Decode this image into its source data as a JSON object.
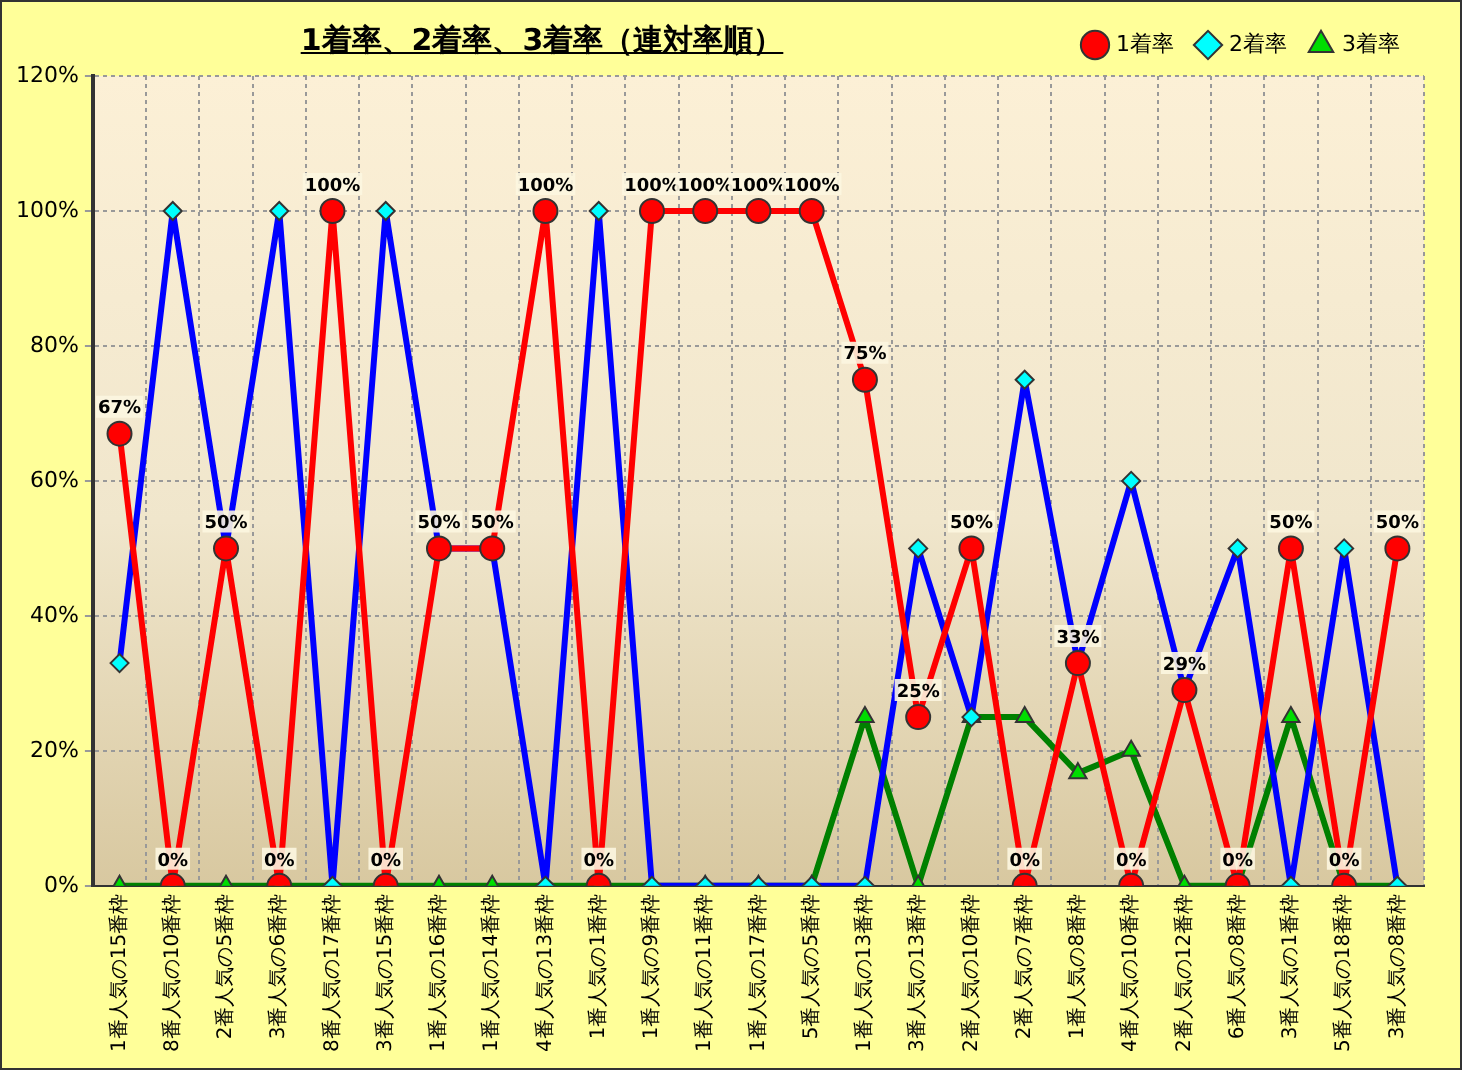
{
  "chart_data": {
    "type": "line",
    "title": "1着率、2着率、3着率（連対率順）",
    "categories": [
      "1番人気の15番枠",
      "8番人気の10番枠",
      "2番人気の5番枠",
      "3番人気の6番枠",
      "8番人気の17番枠",
      "3番人気の15番枠",
      "1番人気の16番枠",
      "1番人気の14番枠",
      "4番人気の13番枠",
      "1番人気の1番枠",
      "1番人気の9番枠",
      "1番人気の11番枠",
      "1番人気の17番枠",
      "5番人気の5番枠",
      "1番人気の13番枠",
      "3番人気の13番枠",
      "2番人気の10番枠",
      "2番人気の7番枠",
      "1番人気の8番枠",
      "4番人気の10番枠",
      "2番人気の12番枠",
      "6番人気の8番枠",
      "3番人気の1番枠",
      "5番人気の18番枠",
      "3番人気の8番枠"
    ],
    "series": [
      {
        "name": "3着率",
        "color": "#008000",
        "marker": "triangle",
        "values": [
          0,
          0,
          0,
          0,
          0,
          0,
          0,
          0,
          0,
          0,
          0,
          0,
          0,
          0,
          25,
          0,
          25,
          25,
          16.7,
          20,
          0,
          0,
          25,
          0,
          0
        ]
      },
      {
        "name": "2着率",
        "color": "#0000ff",
        "marker": "diamond",
        "values": [
          33,
          100,
          50,
          100,
          0,
          100,
          50,
          50,
          0,
          100,
          0,
          0,
          0,
          0,
          0,
          50,
          25,
          75,
          33,
          60,
          29,
          50,
          0,
          50,
          0
        ]
      },
      {
        "name": "1着率",
        "color": "#ff0000",
        "marker": "circle",
        "values": [
          67,
          0,
          50,
          0,
          100,
          0,
          50,
          50,
          100,
          0,
          100,
          100,
          100,
          100,
          75,
          25,
          50,
          0,
          33,
          0,
          29,
          0,
          50,
          0,
          50
        ],
        "value_labels": [
          "67%",
          "0%",
          "50%",
          "0%",
          "100%",
          "0%",
          "50%",
          "50%",
          "100%",
          "0%",
          "100%",
          "100%",
          "100%",
          "100%",
          "75%",
          "25%",
          "50%",
          "0%",
          "33%",
          "0%",
          "29%",
          "0%",
          "50%",
          "0%",
          "50%"
        ]
      }
    ],
    "ylim": [
      0,
      120
    ],
    "yticks": [
      {
        "value": 0,
        "label": "0%"
      },
      {
        "value": 20,
        "label": "20%"
      },
      {
        "value": 40,
        "label": "40%"
      },
      {
        "value": 60,
        "label": "60%"
      },
      {
        "value": 80,
        "label": "80%"
      },
      {
        "value": 100,
        "label": "100%"
      },
      {
        "value": 120,
        "label": "120%"
      }
    ],
    "grid": true,
    "legend": "top right"
  }
}
